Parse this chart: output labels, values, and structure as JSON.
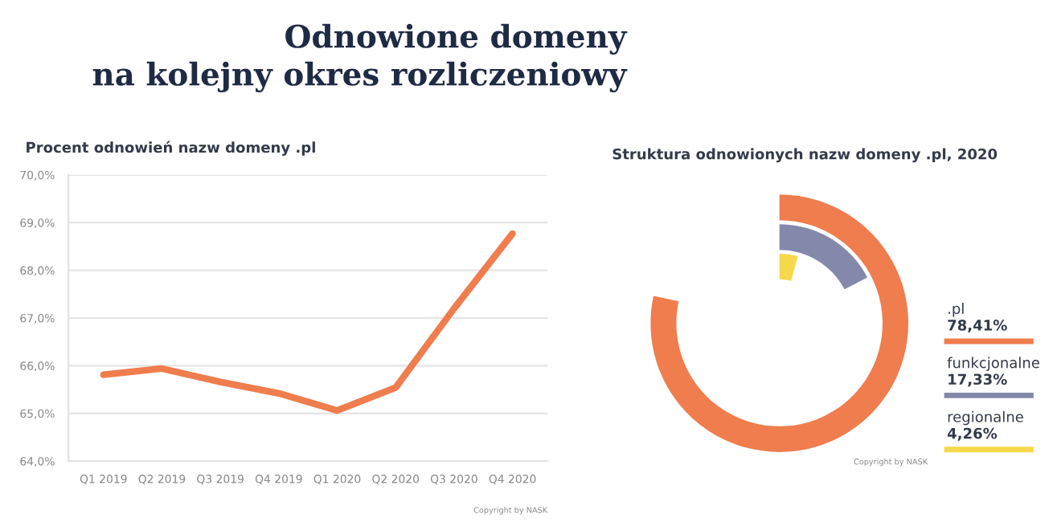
{
  "chart_data": [
    {
      "type": "line",
      "title": "Procent odnowień nazw domeny .pl",
      "categories": [
        "Q1 2019",
        "Q2 2019",
        "Q3 2019",
        "Q4 2019",
        "Q1 2020",
        "Q2 2020",
        "Q3 2020",
        "Q4 2020"
      ],
      "series": [
        {
          "color": "#ef7d4e",
          "values": [
            65.81,
            65.94,
            65.66,
            65.42,
            65.06,
            65.54,
            67.2,
            68.77
          ]
        }
      ],
      "ylim": [
        64,
        70
      ],
      "yticks": [
        {
          "value": 64,
          "label": "64,0%"
        },
        {
          "value": 65,
          "label": "65,0%"
        },
        {
          "value": 66,
          "label": "66,0%"
        },
        {
          "value": 67,
          "label": "67,0%"
        },
        {
          "value": 68,
          "label": "68,0%"
        },
        {
          "value": 69,
          "label": "69,0%"
        },
        {
          "value": 70,
          "label": "70,0%"
        }
      ],
      "grid": "y",
      "marker": "none",
      "line_style": "solid",
      "annotations": [
        "Odnowione domeny\nna kolejny okres rozliczeniowy",
        "Copyright by NASK"
      ]
    },
    {
      "type": "other",
      "title": "Struktura odnowionych nazw domeny .pl, 2020",
      "categories": [
        ".pl",
        "funkcjonalne",
        "regionalne"
      ],
      "values": [
        78.41,
        17.33,
        4.26
      ],
      "value_labels": [
        "78,41%",
        "17,33%",
        "4,26%"
      ],
      "colors": [
        "#ef7d4e",
        "#8489ab",
        "#f5d94a"
      ],
      "annotations": [
        "Copyright by NASK"
      ]
    }
  ]
}
